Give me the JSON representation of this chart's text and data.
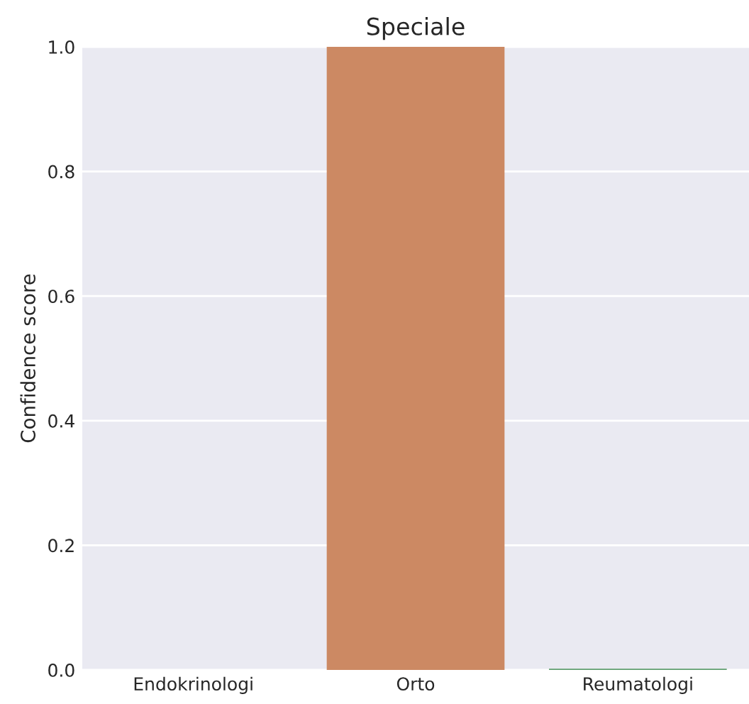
{
  "chart_data": {
    "type": "bar",
    "title": "Speciale",
    "ylabel": "Confidence score",
    "categories": [
      "Endokrinologi",
      "Orto",
      "Reumatologi"
    ],
    "values": [
      0.0,
      1.0,
      0.002
    ],
    "colors": [
      "#5875a4",
      "#cc8963",
      "#5f9e6e"
    ],
    "ylim": [
      0,
      1.0
    ],
    "yticks": [
      {
        "value": 0,
        "label": "0.0"
      },
      0.2,
      0.4,
      0.6,
      0.8,
      {
        "value": 1,
        "label": "1.0"
      }
    ],
    "grid": "y"
  }
}
